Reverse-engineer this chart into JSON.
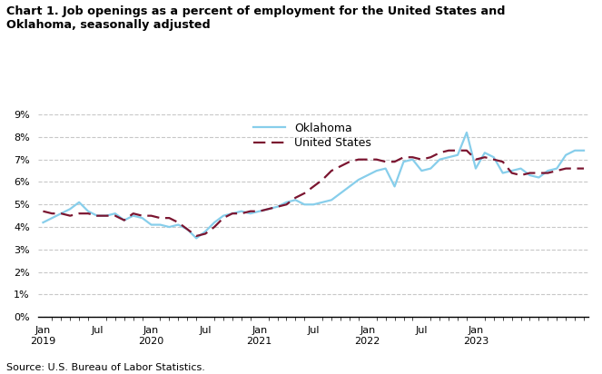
{
  "title": "Chart 1. Job openings as a percent of employment for the United States and\nOklahoma, seasonally adjusted",
  "source": "Source: U.S. Bureau of Labor Statistics.",
  "oklahoma": [
    4.2,
    4.4,
    4.6,
    4.8,
    5.1,
    4.7,
    4.5,
    4.5,
    4.6,
    4.3,
    4.5,
    4.4,
    4.1,
    4.1,
    4.0,
    4.1,
    3.9,
    3.5,
    3.8,
    4.2,
    4.5,
    4.6,
    4.7,
    4.6,
    4.7,
    4.8,
    4.9,
    5.1,
    5.2,
    5.0,
    5.0,
    5.1,
    5.2,
    5.5,
    5.8,
    6.1,
    6.3,
    6.5,
    6.6,
    5.8,
    6.9,
    7.0,
    6.5,
    6.6,
    7.0,
    7.1,
    7.2,
    8.2,
    6.6,
    7.3,
    7.1,
    6.4,
    6.5,
    6.6,
    6.3,
    6.2,
    6.5,
    6.6,
    7.2,
    7.4,
    7.4
  ],
  "us": [
    4.7,
    4.6,
    4.6,
    4.5,
    4.6,
    4.6,
    4.5,
    4.5,
    4.5,
    4.3,
    4.6,
    4.5,
    4.5,
    4.4,
    4.4,
    4.2,
    3.9,
    3.6,
    3.7,
    4.0,
    4.4,
    4.6,
    4.6,
    4.7,
    4.7,
    4.8,
    4.9,
    5.0,
    5.3,
    5.5,
    5.8,
    6.1,
    6.5,
    6.7,
    6.9,
    7.0,
    7.0,
    7.0,
    6.9,
    6.9,
    7.1,
    7.1,
    7.0,
    7.1,
    7.3,
    7.4,
    7.4,
    7.4,
    7.0,
    7.1,
    7.0,
    6.9,
    6.4,
    6.3,
    6.4,
    6.4,
    6.4,
    6.5,
    6.6,
    6.6,
    6.6
  ],
  "oklahoma_color": "#87CEEB",
  "us_color": "#7B1530",
  "background_color": "#ffffff",
  "grid_color": "#c8c8c8"
}
